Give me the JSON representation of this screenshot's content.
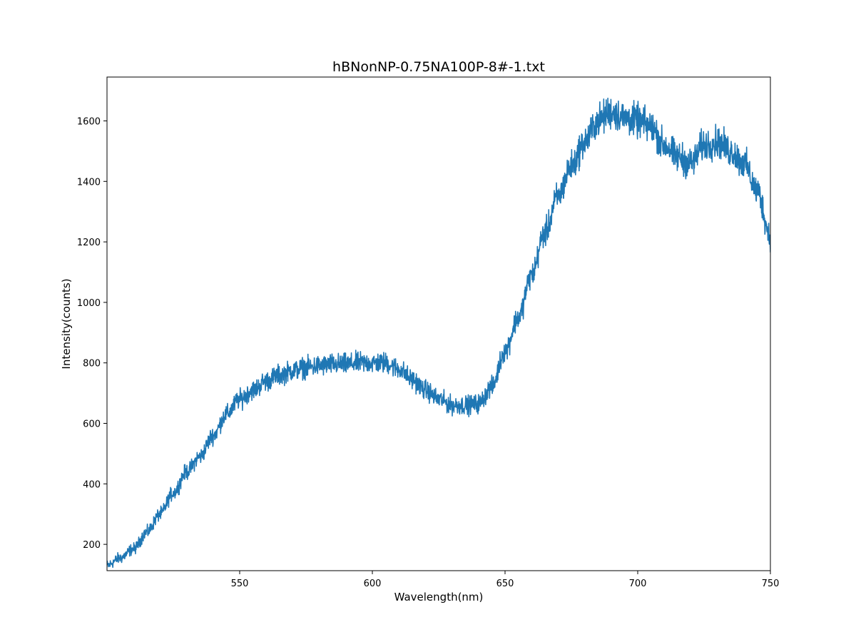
{
  "chart_data": {
    "type": "line",
    "title": "hBNonNP-0.75NA100P-8#-1.txt",
    "xlabel": "Wavelength(nm)",
    "ylabel": "Intensity(counts)",
    "xlim": [
      500,
      750
    ],
    "ylim": [
      113,
      1745
    ],
    "xticks": [
      550,
      600,
      650,
      700,
      750
    ],
    "xtick_labels": [
      "550",
      "600",
      "650",
      "700",
      "750"
    ],
    "yticks": [
      200,
      400,
      600,
      800,
      1000,
      1200,
      1400,
      1600
    ],
    "ytick_labels": [
      "200",
      "400",
      "600",
      "800",
      "1000",
      "1200",
      "1400",
      "1600"
    ],
    "grid": false,
    "legend": "none",
    "series": [
      {
        "color": "#1f77b4",
        "noise_amplitude": 40,
        "x": [
          500,
          505,
          510,
          515,
          520,
          525,
          530,
          535,
          540,
          545,
          550,
          555,
          560,
          565,
          570,
          575,
          580,
          585,
          590,
          595,
          600,
          605,
          610,
          615,
          620,
          625,
          630,
          635,
          640,
          645,
          650,
          655,
          660,
          665,
          670,
          675,
          680,
          685,
          690,
          695,
          700,
          705,
          710,
          715,
          720,
          725,
          730,
          735,
          740,
          745,
          750
        ],
        "y": [
          130,
          155,
          185,
          240,
          300,
          370,
          440,
          490,
          560,
          630,
          680,
          710,
          740,
          760,
          775,
          785,
          790,
          795,
          795,
          800,
          800,
          800,
          780,
          745,
          710,
          680,
          660,
          660,
          665,
          720,
          840,
          950,
          1090,
          1230,
          1350,
          1450,
          1530,
          1600,
          1630,
          1610,
          1600,
          1580,
          1520,
          1480,
          1460,
          1520,
          1530,
          1500,
          1460,
          1370,
          1220
        ]
      }
    ]
  }
}
